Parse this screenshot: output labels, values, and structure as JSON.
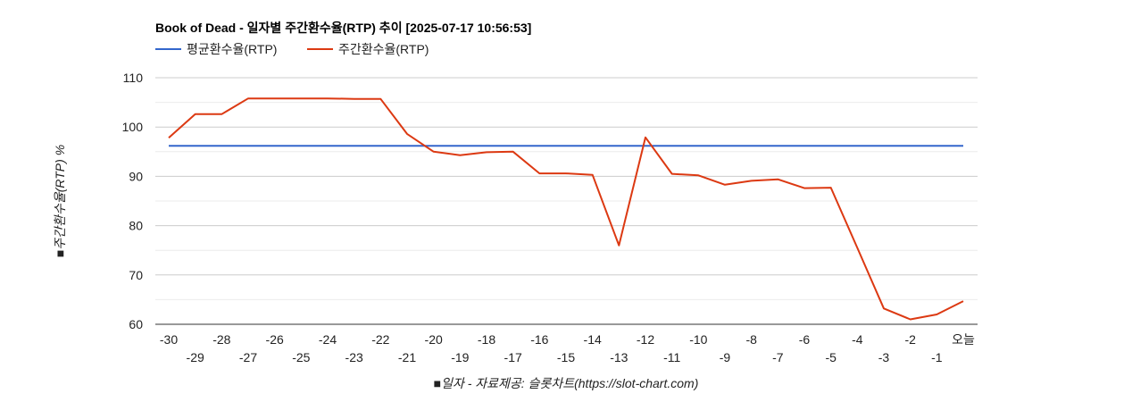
{
  "chart_data": {
    "type": "line",
    "title": "Book of Dead - 일자별 주간환수율(RTP) 추이 [2025-07-17 10:56:53]",
    "xlabel": "■일자 - 자료제공: 슬롯차트(https://slot-chart.com)",
    "ylabel": "■주간환수율(RTP) %",
    "ylim": [
      60,
      110
    ],
    "yticks": [
      60,
      70,
      80,
      90,
      100,
      110
    ],
    "grid": true,
    "legend_position": "top-left",
    "categories": [
      "-30",
      "-29",
      "-28",
      "-27",
      "-26",
      "-25",
      "-24",
      "-23",
      "-22",
      "-21",
      "-20",
      "-19",
      "-18",
      "-17",
      "-16",
      "-15",
      "-14",
      "-13",
      "-12",
      "-11",
      "-10",
      "-9",
      "-8",
      "-7",
      "-6",
      "-5",
      "-4",
      "-3",
      "-2",
      "-1",
      "오늘"
    ],
    "series": [
      {
        "name": "평균환수율(RTP)",
        "color": "#3366cc",
        "values": [
          96.2,
          96.2,
          96.2,
          96.2,
          96.2,
          96.2,
          96.2,
          96.2,
          96.2,
          96.2,
          96.2,
          96.2,
          96.2,
          96.2,
          96.2,
          96.2,
          96.2,
          96.2,
          96.2,
          96.2,
          96.2,
          96.2,
          96.2,
          96.2,
          96.2,
          96.2,
          96.2,
          96.2,
          96.2,
          96.2,
          96.2
        ]
      },
      {
        "name": "주간환수율(RTP)",
        "color": "#dc3912",
        "values": [
          97.8,
          102.6,
          102.6,
          105.8,
          105.8,
          105.8,
          105.8,
          105.7,
          105.7,
          98.6,
          95.0,
          94.3,
          94.9,
          95.0,
          90.6,
          90.6,
          90.3,
          76.0,
          97.9,
          90.5,
          90.2,
          88.3,
          89.1,
          89.4,
          87.6,
          87.7,
          75.5,
          63.2,
          61.0,
          62.0,
          64.7
        ]
      }
    ]
  }
}
